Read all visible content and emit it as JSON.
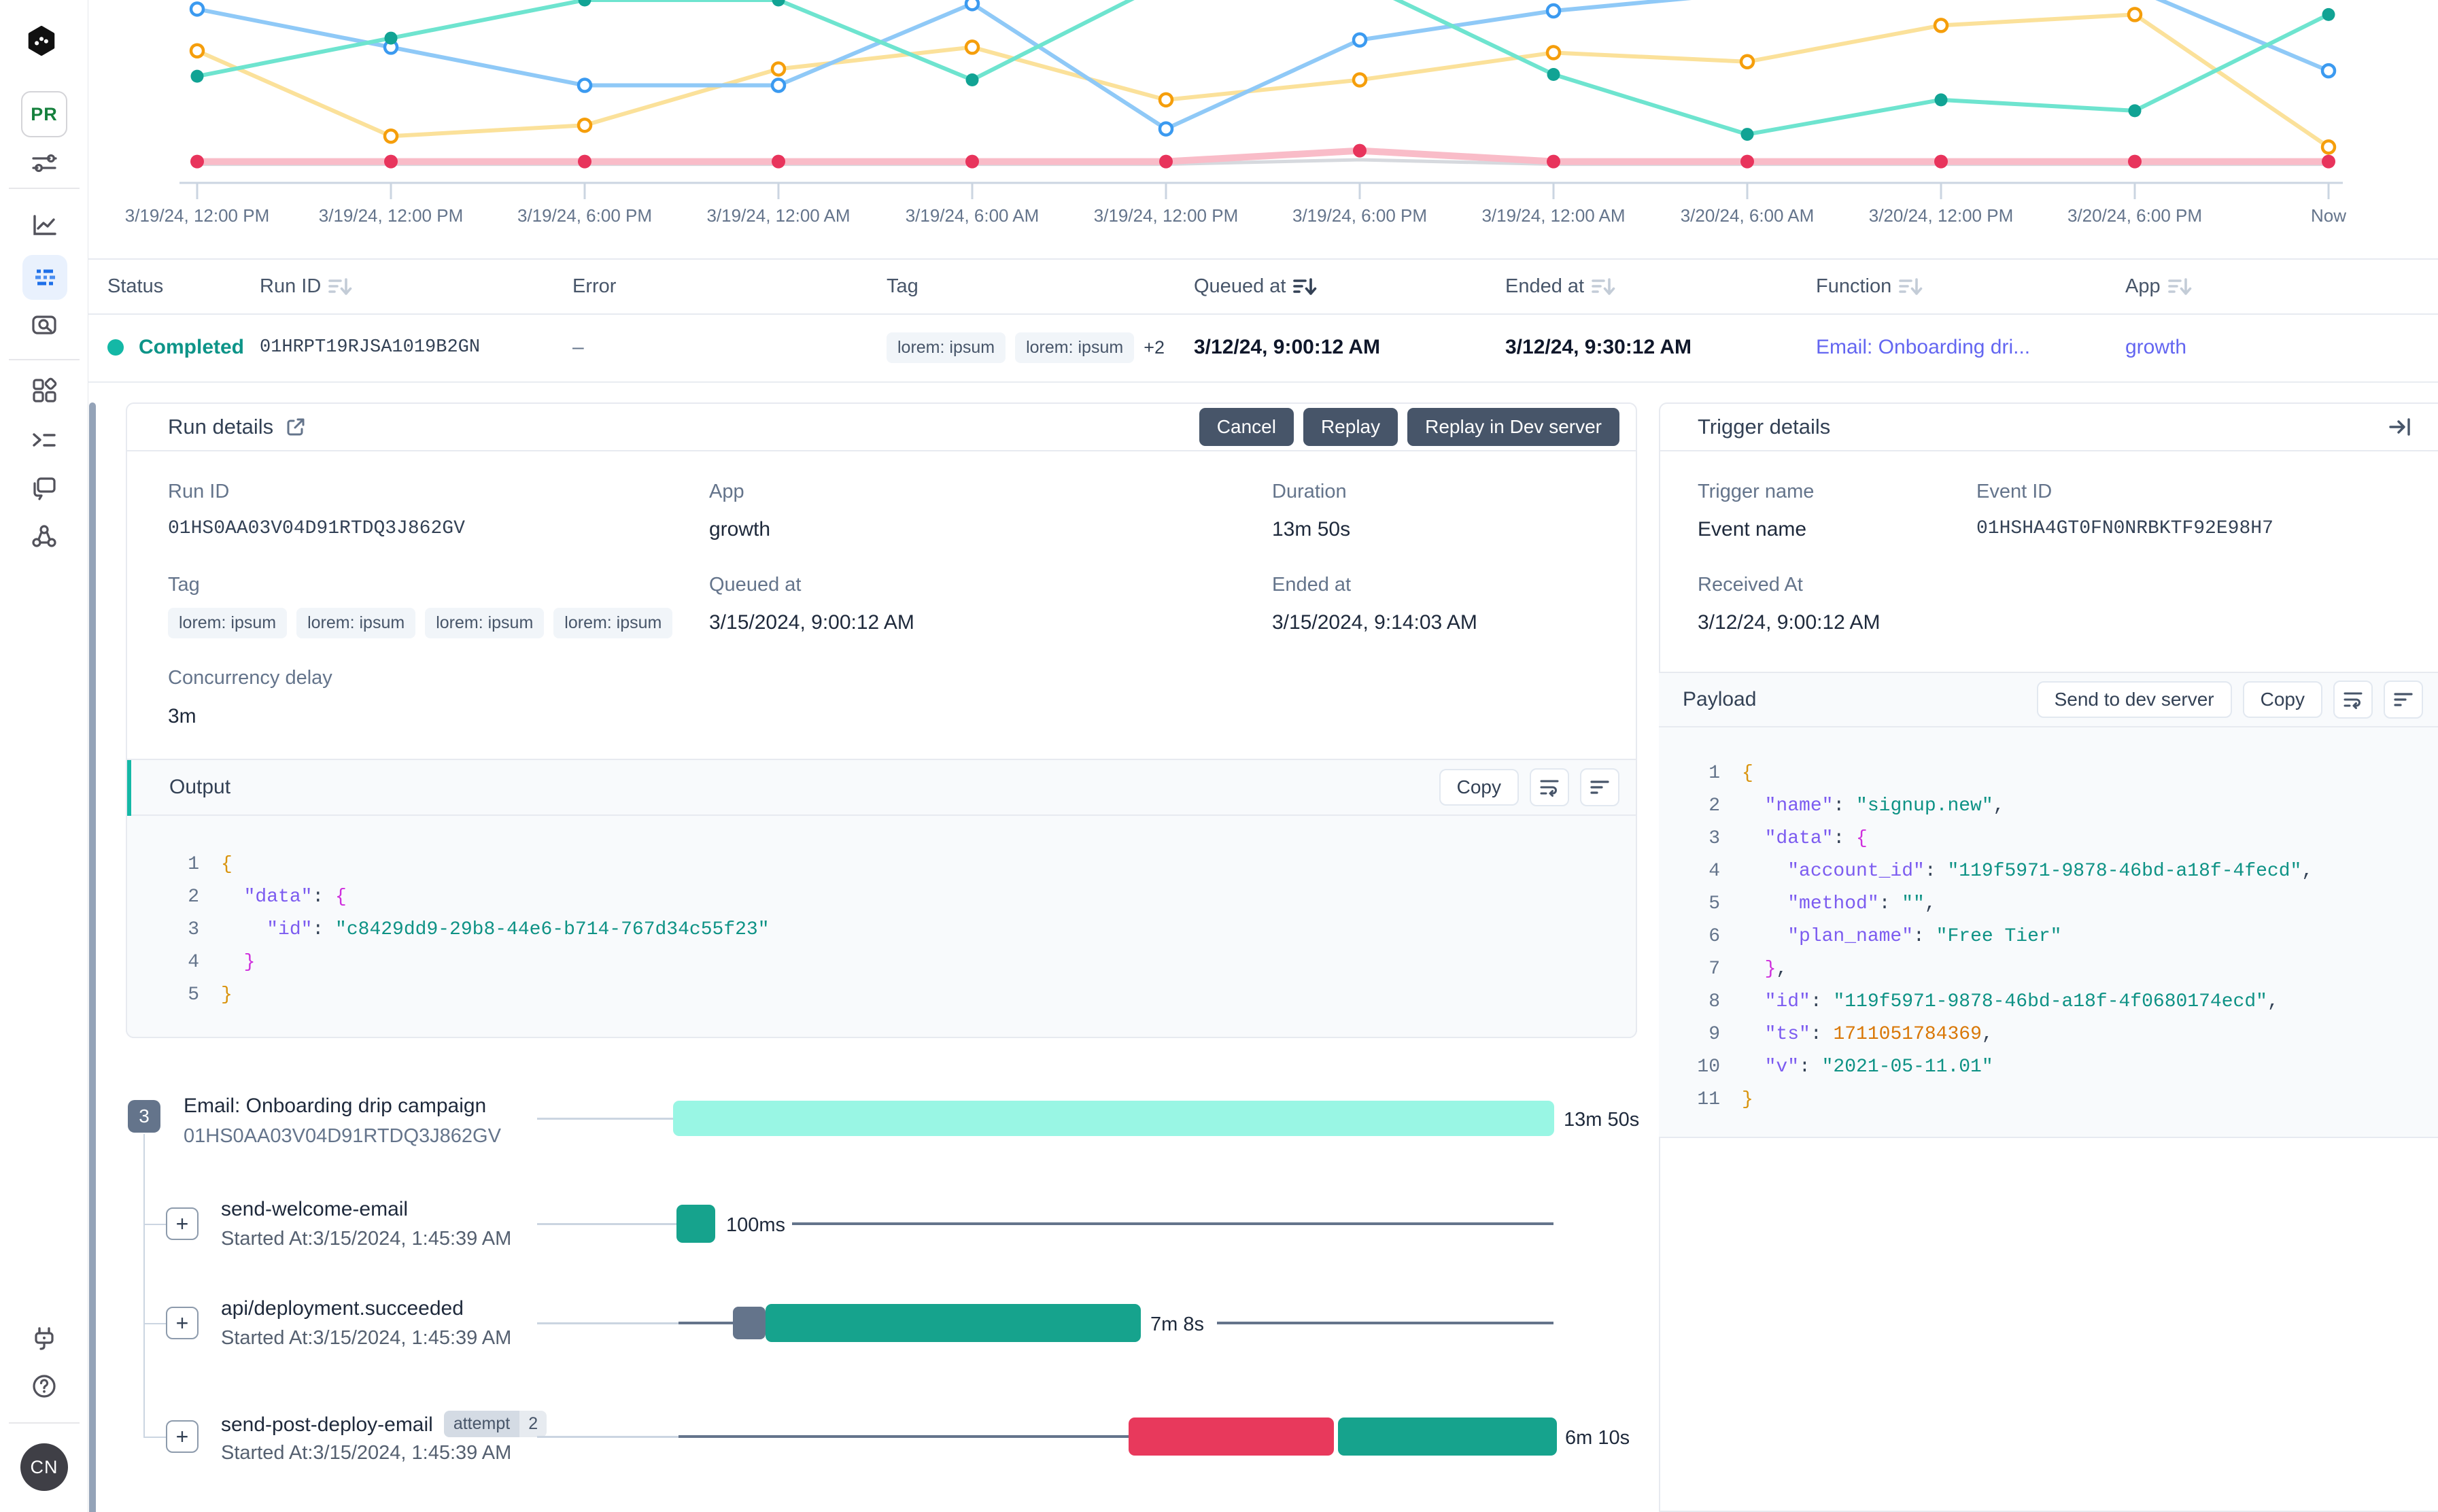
{
  "colors": {
    "accent_teal": "#14b8a6",
    "link": "#6366f1",
    "button_dark": "#475569",
    "bar_light_teal": "#99f6e4",
    "bar_teal": "#16a38d",
    "bar_red": "#e8395c",
    "badge_slate": "#64748b",
    "selected_nav_bg": "#e9f1fd",
    "selected_nav_fg": "#1d6fe8"
  },
  "sidebar": {
    "workspace_badge": "PR",
    "avatar_initials": "CN",
    "icons": [
      "inngest-logo-icon",
      "filters-icon",
      "metrics-icon",
      "runs-icon",
      "search-icon",
      "apps-icon",
      "functions-icon",
      "deploys-icon",
      "integrations-icon",
      "dev-server-plug-icon",
      "help-icon"
    ]
  },
  "chart": {
    "chart_data": {
      "type": "line",
      "title": "",
      "xlabel": "",
      "ylabel": "",
      "grid": "none",
      "legend": "none",
      "x_tick_labels": [
        "3/19/24, 12:00 PM",
        "3/19/24, 12:00 PM",
        "3/19/24, 6:00 PM",
        "3/19/24, 12:00 AM",
        "3/19/24, 6:00 AM",
        "3/19/24, 12:00 PM",
        "3/19/24, 6:00 PM",
        "3/19/24, 12:00 AM",
        "3/20/24, 6:00 AM",
        "3/20/24, 12:00 PM",
        "3/20/24, 6:00 PM",
        "Now"
      ],
      "note": "y axis has no labels; values are percent from top of visible plot area (plot cut off at top of screenshot)",
      "series": [
        {
          "name": "gray",
          "line_color": "#d6d9de",
          "dot_style": "none",
          "dot_color": null,
          "stroke": 5,
          "y_pct_from_top": [
            90.5,
            90.5,
            90.5,
            90.5,
            90.5,
            90.5,
            88,
            90.5,
            90.5,
            90.5,
            90.5,
            90.5
          ],
          "dot_skip": [
            0,
            1,
            2,
            3,
            4,
            5,
            6,
            7,
            8,
            9,
            10,
            11
          ]
        },
        {
          "name": "pink",
          "line_color": "#f9bcc8",
          "dot_style": "filled",
          "dot_color": "#e8345c",
          "stroke": 10,
          "y_pct_from_top": [
            89,
            89,
            89,
            89,
            89,
            89,
            83,
            89,
            89,
            89,
            89,
            89
          ],
          "dot_skip": []
        },
        {
          "name": "yellow",
          "line_color": "#fbe19a",
          "dot_style": "open",
          "dot_color": "#f59e0b",
          "stroke": 6,
          "y_pct_from_top": [
            28,
            75,
            69,
            38,
            26,
            55,
            44,
            29,
            34,
            14,
            8,
            81
          ],
          "dot_skip": []
        },
        {
          "name": "blue",
          "line_color": "#8fc9f7",
          "dot_style": "open",
          "dot_color": "#3b9af0",
          "stroke": 6,
          "y_pct_from_top": [
            5,
            26,
            47,
            47,
            2,
            71,
            22,
            6,
            -4,
            -12,
            -6,
            39
          ],
          "dot_skip": [
            8,
            9,
            10
          ]
        },
        {
          "name": "teal",
          "line_color": "#6ee4cf",
          "dot_style": "filled",
          "dot_color": "#11a394",
          "stroke": 6,
          "y_pct_from_top": [
            42,
            21,
            0,
            0,
            44,
            -10,
            -10,
            41,
            74,
            55,
            61,
            8
          ],
          "dot_skip": [
            5,
            6
          ]
        }
      ]
    }
  },
  "table": {
    "headers": [
      {
        "label": "Status",
        "sort": "none"
      },
      {
        "label": "Run ID",
        "sort": "light"
      },
      {
        "label": "Error",
        "sort": "none"
      },
      {
        "label": "Tag",
        "sort": "none"
      },
      {
        "label": "Queued at",
        "sort": "dark"
      },
      {
        "label": "Ended at",
        "sort": "light"
      },
      {
        "label": "Function",
        "sort": "light"
      },
      {
        "label": "App",
        "sort": "light"
      }
    ],
    "row": {
      "status": "Completed",
      "run_id": "01HRPT19RJSA1019B2GN",
      "error": "–",
      "tags": [
        "lorem: ipsum",
        "lorem: ipsum"
      ],
      "tags_extra": "+2",
      "queued_at": "3/12/24, 9:00:12 AM",
      "ended_at": "3/12/24, 9:30:12 AM",
      "function": "Email: Onboarding dri...",
      "app": "growth"
    }
  },
  "run_details": {
    "title": "Run details",
    "cancel_label": "Cancel",
    "replay_label": "Replay",
    "replay_dev_label": "Replay in Dev server",
    "run_id_label": "Run ID",
    "run_id": "01HS0AA03V04D91RTDQ3J862GV",
    "app_label": "App",
    "app": "growth",
    "duration_label": "Duration",
    "duration": "13m 50s",
    "tag_label": "Tag",
    "tags": [
      "lorem: ipsum",
      "lorem: ipsum",
      "lorem: ipsum",
      "lorem: ipsum"
    ],
    "queued_label": "Queued at",
    "queued_at": "3/15/2024, 9:00:12 AM",
    "ended_label": "Ended at",
    "ended_at": "3/15/2024, 9:14:03 AM",
    "concurrency_label": "Concurrency delay",
    "concurrency": "3m"
  },
  "output": {
    "title": "Output",
    "copy_label": "Copy",
    "icons": [
      "wrap-text-icon",
      "align-left-icon"
    ],
    "lines": [
      [
        [
          "{",
          "b1"
        ]
      ],
      [
        [
          "  \"data\"",
          "key"
        ],
        [
          ": ",
          "pun"
        ],
        [
          "{",
          "b2"
        ]
      ],
      [
        [
          "    \"id\"",
          "key"
        ],
        [
          ": ",
          "pun"
        ],
        [
          "\"c8429dd9-29b8-44e6-b714-767d34c55f23\"",
          "str"
        ]
      ],
      [
        [
          "  }",
          "b2"
        ]
      ],
      [
        [
          "}",
          "b1"
        ]
      ]
    ]
  },
  "trigger_details": {
    "title": "Trigger details",
    "collapse_icon": "arrow-to-bar-icon",
    "trigger_name_label": "Trigger name",
    "trigger_name": "Event name",
    "event_id_label": "Event ID",
    "event_id": "01HSHA4GT0FN0NRBKTF92E98H7",
    "received_label": "Received At",
    "received_at": "3/12/24, 9:00:12 AM"
  },
  "payload": {
    "title": "Payload",
    "send_label": "Send to dev server",
    "copy_label": "Copy",
    "icons": [
      "wrap-text-icon",
      "align-left-icon"
    ],
    "lines": [
      [
        [
          "{",
          "b1"
        ]
      ],
      [
        [
          "  \"name\"",
          "key"
        ],
        [
          ": ",
          "pun"
        ],
        [
          "\"signup.new\"",
          "str"
        ],
        [
          ",",
          "pun"
        ]
      ],
      [
        [
          "  \"data\"",
          "key"
        ],
        [
          ": ",
          "pun"
        ],
        [
          "{",
          "b2"
        ]
      ],
      [
        [
          "    \"account_id\"",
          "key"
        ],
        [
          ": ",
          "pun"
        ],
        [
          "\"119f5971-9878-46bd-a18f-4fecd\"",
          "str"
        ],
        [
          ",",
          "pun"
        ]
      ],
      [
        [
          "    \"method\"",
          "key"
        ],
        [
          ": ",
          "pun"
        ],
        [
          "\"\"",
          "str"
        ],
        [
          ",",
          "pun"
        ]
      ],
      [
        [
          "    \"plan_name\"",
          "key"
        ],
        [
          ": ",
          "pun"
        ],
        [
          "\"Free Tier\"",
          "str"
        ]
      ],
      [
        [
          "  }",
          "b2"
        ],
        [
          ",",
          "pun"
        ]
      ],
      [
        [
          "  \"id\"",
          "key"
        ],
        [
          ": ",
          "pun"
        ],
        [
          "\"119f5971-9878-46bd-a18f-4f0680174ecd\"",
          "str"
        ],
        [
          ",",
          "pun"
        ]
      ],
      [
        [
          "  \"ts\"",
          "key"
        ],
        [
          ": ",
          "pun"
        ],
        [
          "1711051784369",
          "num"
        ],
        [
          ",",
          "pun"
        ]
      ],
      [
        [
          "  \"v\"",
          "key"
        ],
        [
          ": ",
          "pun"
        ],
        [
          "\"2021-05-11.01\"",
          "str"
        ]
      ],
      [
        [
          "}",
          "b1"
        ]
      ]
    ]
  },
  "timeline": {
    "root": {
      "badge": "3",
      "title": "Email: Onboarding drip campaign",
      "run_id": "01HS0AA03V04D91RTDQ3J862GV",
      "duration": "13m 50s"
    },
    "steps": [
      {
        "title": "send-welcome-email",
        "started": "Started At:3/15/2024, 1:45:39 AM",
        "duration": "100ms"
      },
      {
        "title": "api/deployment.succeeded",
        "started": "Started At:3/15/2024, 1:45:39 AM",
        "duration": "7m 8s"
      },
      {
        "title": "send-post-deploy-email",
        "attempt_label": "attempt",
        "attempt_count": "2",
        "started": "Started At:3/15/2024, 1:45:39 AM",
        "duration": "6m 10s"
      }
    ]
  }
}
